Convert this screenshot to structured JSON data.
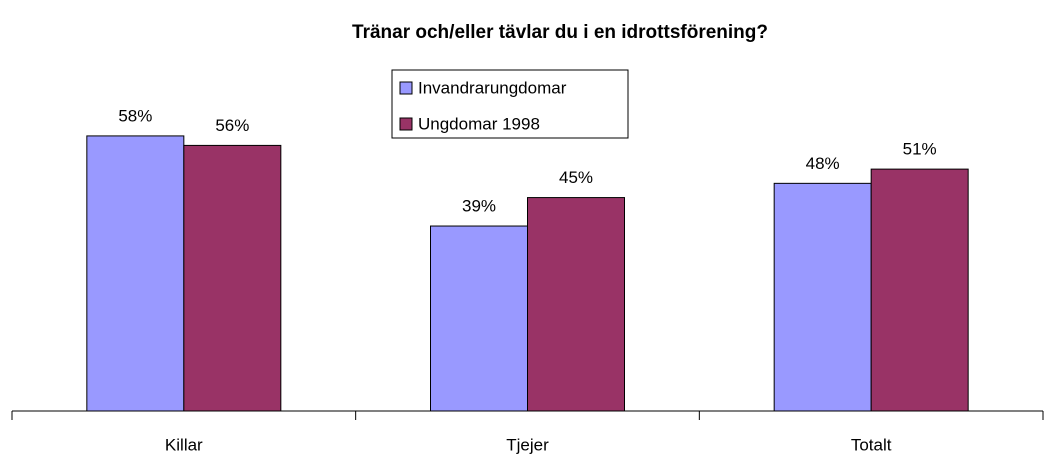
{
  "chart_data": {
    "type": "bar",
    "title": "Tränar och/eller tävlar du i en idrottsförening?",
    "categories": [
      "Killar",
      "Tjejer",
      "Totalt"
    ],
    "series": [
      {
        "name": "Invandrarungdomar",
        "color": "#9999ff",
        "values": [
          58,
          39,
          48
        ],
        "value_labels": [
          "58%",
          "39%",
          "48%"
        ]
      },
      {
        "name": "Ungdomar 1998",
        "color": "#993366",
        "values": [
          56,
          45,
          51
        ],
        "value_labels": [
          "56%",
          "45%",
          "51%"
        ]
      }
    ],
    "ylim": [
      0,
      70
    ]
  }
}
